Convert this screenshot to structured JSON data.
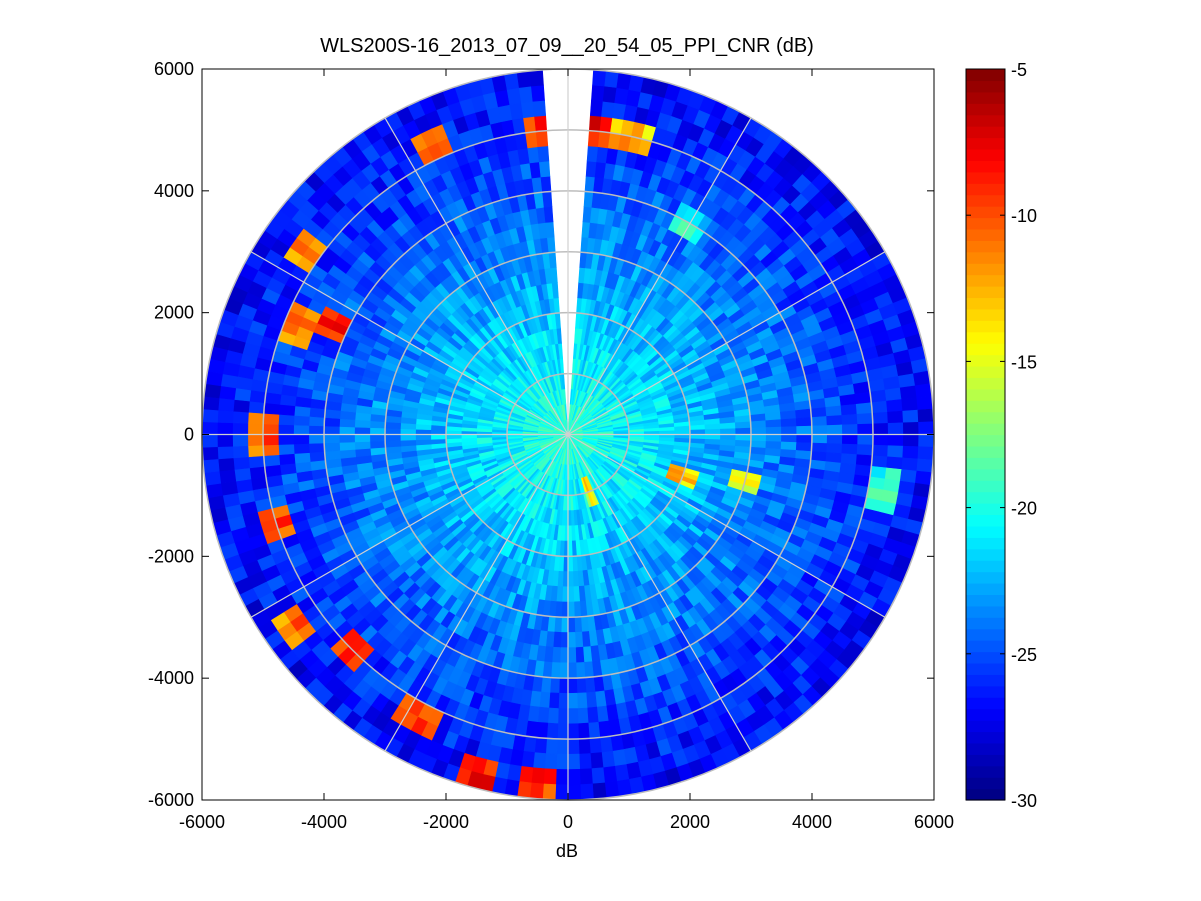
{
  "chart_data": {
    "type": "heatmap",
    "subtype": "polar-ppi",
    "title": "WLS200S-16_2013_07_09__20_54_05_PPI_CNR (dB)",
    "xlabel": "dB",
    "ylabel": "",
    "xlim": [
      -6000,
      6000
    ],
    "ylim": [
      -6000,
      6000
    ],
    "xticks": [
      -6000,
      -4000,
      -2000,
      0,
      2000,
      4000,
      6000
    ],
    "yticks": [
      6000,
      4000,
      2000,
      0,
      -2000,
      -4000,
      -6000
    ],
    "polar_grid": {
      "range_rings": [
        1000,
        2000,
        3000,
        4000,
        5000,
        6000
      ],
      "radial_spokes_deg": [
        0,
        30,
        60,
        90,
        120,
        150,
        180,
        210,
        240,
        270,
        300,
        330
      ]
    },
    "data_max_range": 6000,
    "missing_sector_deg": [
      -4,
      4
    ],
    "colormap": "jet",
    "colorbar": {
      "range": [
        -30,
        -5
      ],
      "ticks": [
        -5,
        -10,
        -15,
        -20,
        -25,
        -30
      ]
    },
    "approx_field": {
      "description": "CNR (dB) decreases with range: about -19 dB near the lidar to about -27 dB at the outer edge; strong echoes at -5 to -12 dB scattered near the west, south-west and north rim.",
      "near_range_value": -19,
      "far_range_value": -27,
      "strong_echo_clusters": [
        {
          "azimuth_deg": 270,
          "range_m": 4900,
          "value": -8
        },
        {
          "azimuth_deg": 292,
          "range_m": 4800,
          "value": -9
        },
        {
          "azimuth_deg": 295,
          "range_m": 4200,
          "value": -7
        },
        {
          "azimuth_deg": 305,
          "range_m": 5300,
          "value": -10
        },
        {
          "azimuth_deg": 253,
          "range_m": 5000,
          "value": -8
        },
        {
          "azimuth_deg": 235,
          "range_m": 5400,
          "value": -9
        },
        {
          "azimuth_deg": 225,
          "range_m": 5000,
          "value": -7
        },
        {
          "azimuth_deg": 208,
          "range_m": 5300,
          "value": -8
        },
        {
          "azimuth_deg": 195,
          "range_m": 5800,
          "value": -6
        },
        {
          "azimuth_deg": 185,
          "range_m": 5700,
          "value": -7
        },
        {
          "azimuth_deg": 355,
          "range_m": 5100,
          "value": -8
        },
        {
          "azimuth_deg": 5,
          "range_m": 5100,
          "value": -7
        },
        {
          "azimuth_deg": 12,
          "range_m": 4900,
          "value": -10
        },
        {
          "azimuth_deg": 335,
          "range_m": 5200,
          "value": -9
        },
        {
          "azimuth_deg": 110,
          "range_m": 1900,
          "value": -10
        },
        {
          "azimuth_deg": 105,
          "range_m": 3000,
          "value": -13
        },
        {
          "azimuth_deg": 160,
          "range_m": 900,
          "value": -12
        },
        {
          "azimuth_deg": 30,
          "range_m": 3900,
          "value": -18
        },
        {
          "azimuth_deg": 100,
          "range_m": 5300,
          "value": -17
        }
      ]
    }
  }
}
